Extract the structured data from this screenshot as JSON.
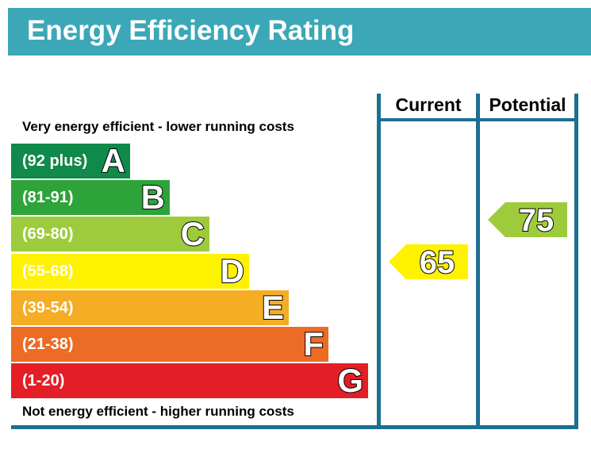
{
  "title": "Energy Efficiency Rating",
  "top_label": "Very energy efficient - lower running costs",
  "bottom_label": "Not energy efficient - higher running costs",
  "columns": {
    "current": "Current",
    "potential": "Potential"
  },
  "colors": {
    "title_bar": "#3ca7b6",
    "frame": "#1d6f91"
  },
  "chart_data": {
    "type": "bar",
    "title": "Energy Efficiency Rating",
    "categories": [
      "A",
      "B",
      "C",
      "D",
      "E",
      "F",
      "G"
    ],
    "bands": [
      {
        "letter": "A",
        "range": "(92 plus)",
        "color": "#0f8a4a"
      },
      {
        "letter": "B",
        "range": "(81-91)",
        "color": "#2ea33a"
      },
      {
        "letter": "C",
        "range": "(69-80)",
        "color": "#9ecb3c"
      },
      {
        "letter": "D",
        "range": "(55-68)",
        "color": "#fff200"
      },
      {
        "letter": "E",
        "range": "(39-54)",
        "color": "#f4ad25"
      },
      {
        "letter": "F",
        "range": "(21-38)",
        "color": "#ec6b25"
      },
      {
        "letter": "G",
        "range": "(1-20)",
        "color": "#e41e26"
      }
    ],
    "series": [
      {
        "name": "Current",
        "value": 65,
        "band": "D",
        "color": "#fff200"
      },
      {
        "name": "Potential",
        "value": 75,
        "band": "C",
        "color": "#9ecb3c"
      }
    ]
  }
}
